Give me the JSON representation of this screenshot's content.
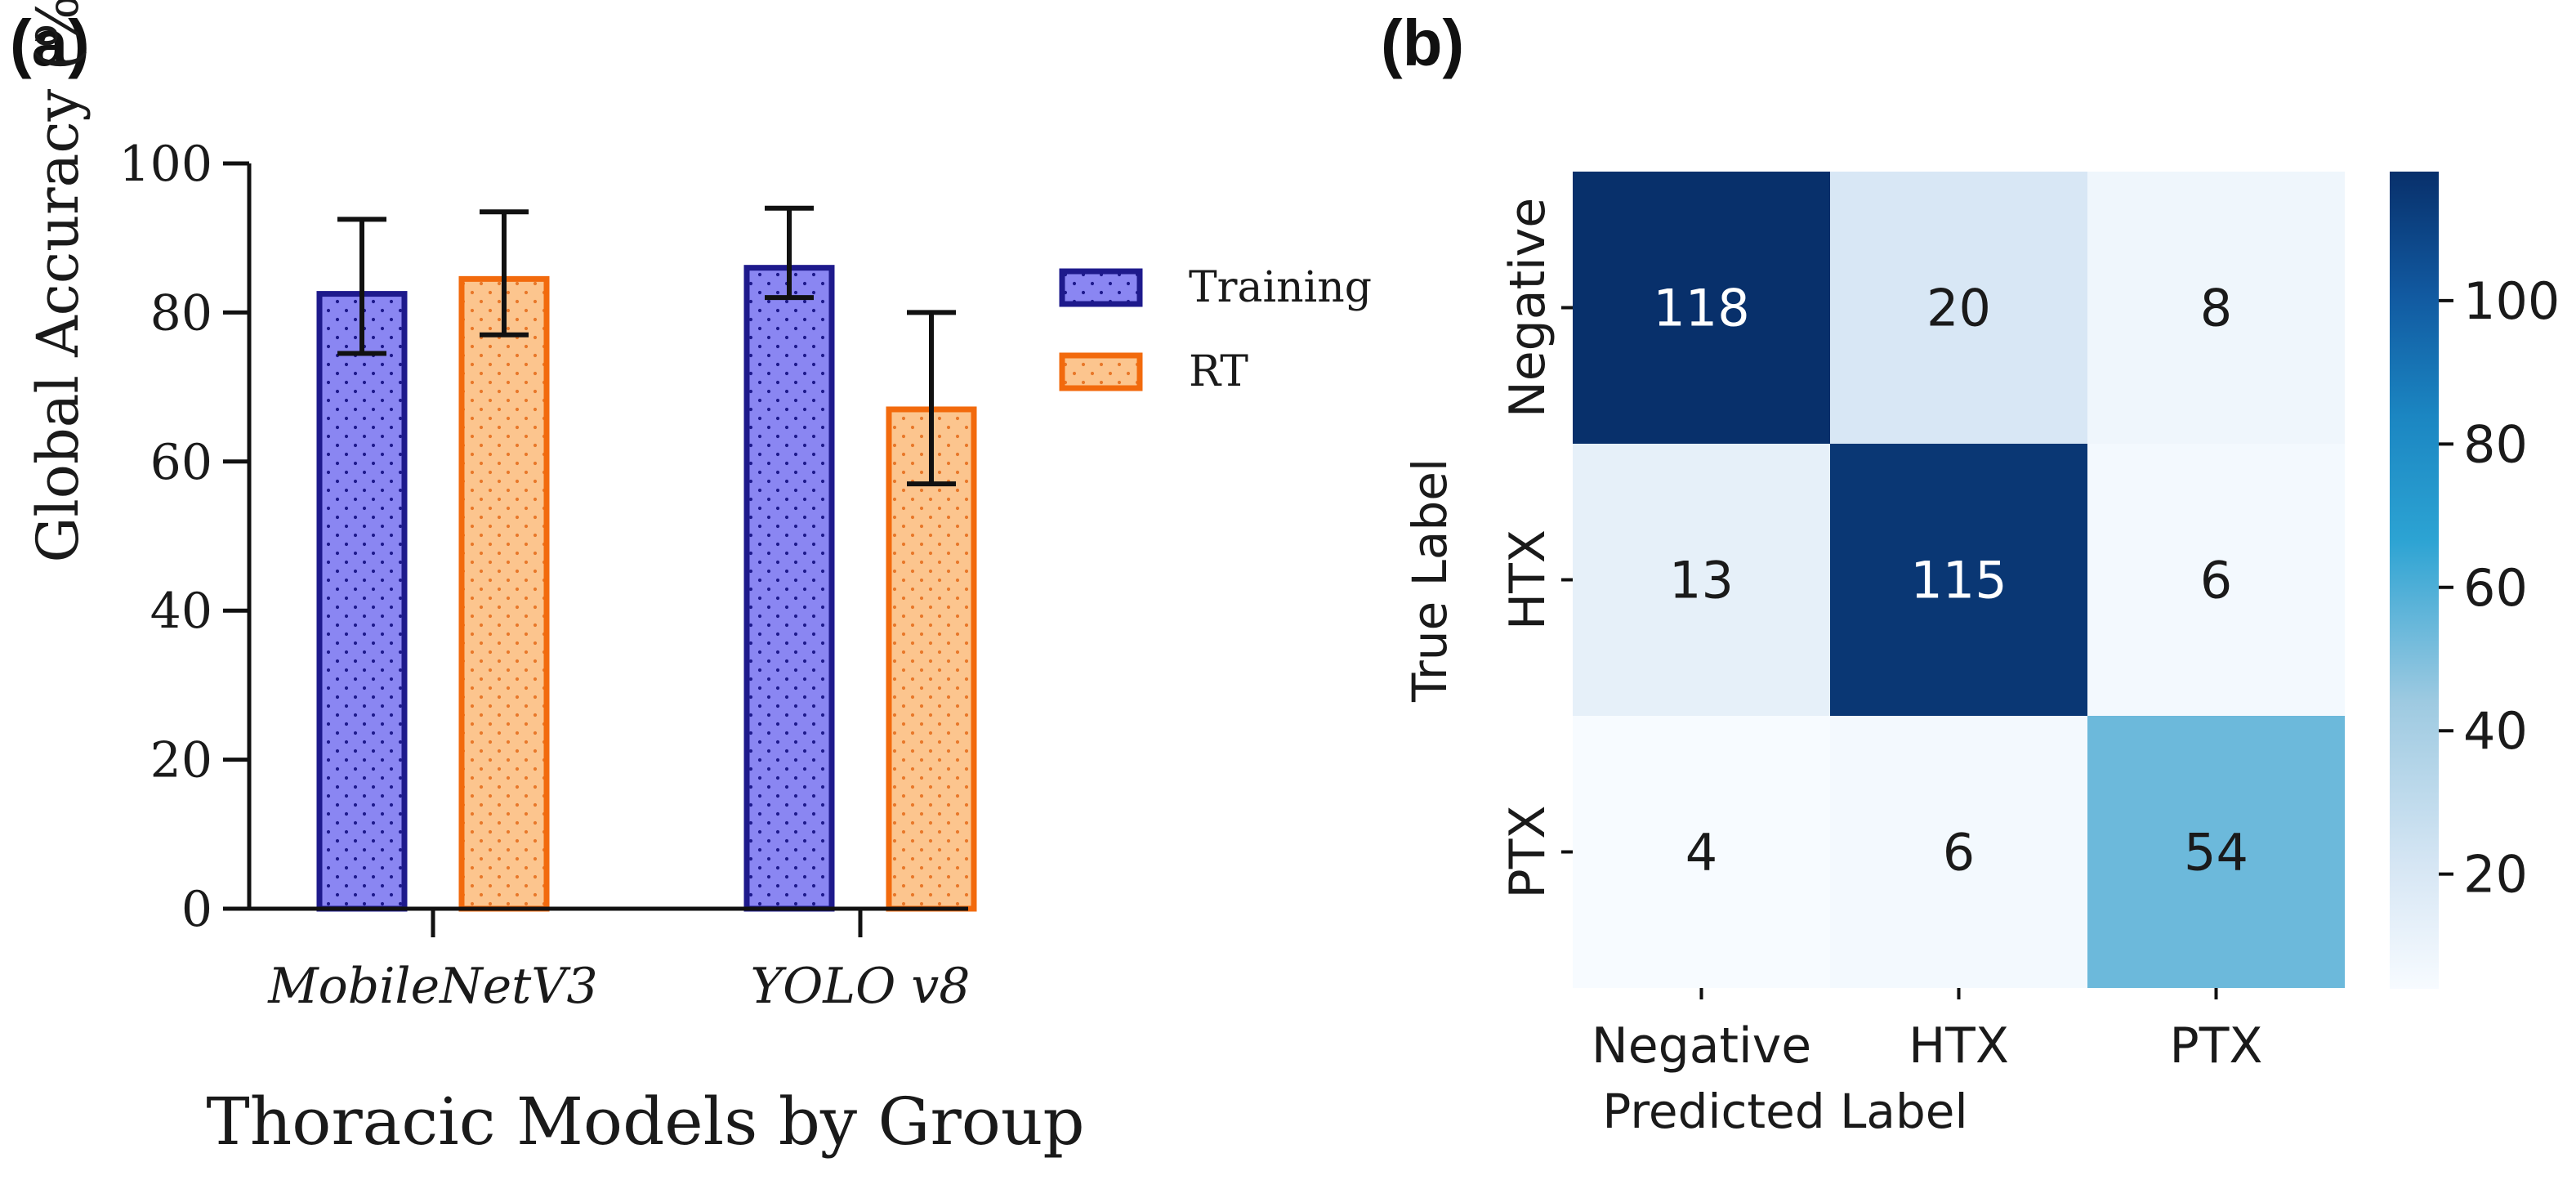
{
  "panel_a_tag": "(a)",
  "panel_b_tag": "(b)",
  "colors": {
    "training_fill": "#8a86f2",
    "training_edge": "#1e1a8c",
    "rt_fill": "#fcc58e",
    "rt_edge": "#f26a0d",
    "errorbar": "#111111"
  },
  "chart_data": [
    {
      "type": "bar",
      "title": "",
      "categories": [
        "MobileNetV3",
        "YOLO v8"
      ],
      "series": [
        {
          "name": "Training",
          "values": [
            82.5,
            86
          ],
          "err_low": [
            74.5,
            82
          ],
          "err_high": [
            92.5,
            94
          ]
        },
        {
          "name": "RT",
          "values": [
            84.5,
            67
          ],
          "err_low": [
            77,
            57
          ],
          "err_high": [
            93.5,
            80
          ]
        }
      ],
      "ylabel": "Global Accuracy (%)",
      "xlabel": "Thoracic Models by Group",
      "ylim": [
        0,
        100
      ],
      "yticks": [
        "0",
        "20",
        "40",
        "60",
        "80",
        "100"
      ],
      "legend": "right",
      "grid": false
    },
    {
      "type": "heatmap",
      "title": "",
      "x_labels": [
        "Negative",
        "HTX",
        "PTX"
      ],
      "y_labels": [
        "Negative",
        "HTX",
        "PTX"
      ],
      "values": [
        [
          118,
          20,
          8
        ],
        [
          13,
          115,
          6
        ],
        [
          4,
          6,
          54
        ]
      ],
      "xlabel": "Predicted Label",
      "ylabel": "True Label",
      "colorbar": {
        "min": 4,
        "max": 118,
        "ticks": [
          "20",
          "40",
          "60",
          "80",
          "100"
        ]
      },
      "colormap": "Blues"
    }
  ]
}
